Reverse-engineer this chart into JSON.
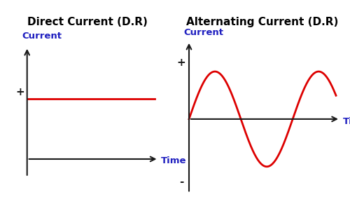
{
  "bg_color": "#ffffff",
  "orange_box_color": "#f0a830",
  "title_dc": "Direct Current (D.R)",
  "title_ac": "Alternating Current (D.R)",
  "title_fontsize": 11,
  "label_color": "#2020c0",
  "axis_color": "#1a1a1a",
  "line_color": "#dd0000",
  "line_width": 2.0,
  "xlabel": "Time",
  "ylabel": "Current",
  "plus_label": "+",
  "minus_label": "-",
  "dc_value": 0.6,
  "ac_amplitude": 0.72,
  "ac_frequency": 1.35
}
